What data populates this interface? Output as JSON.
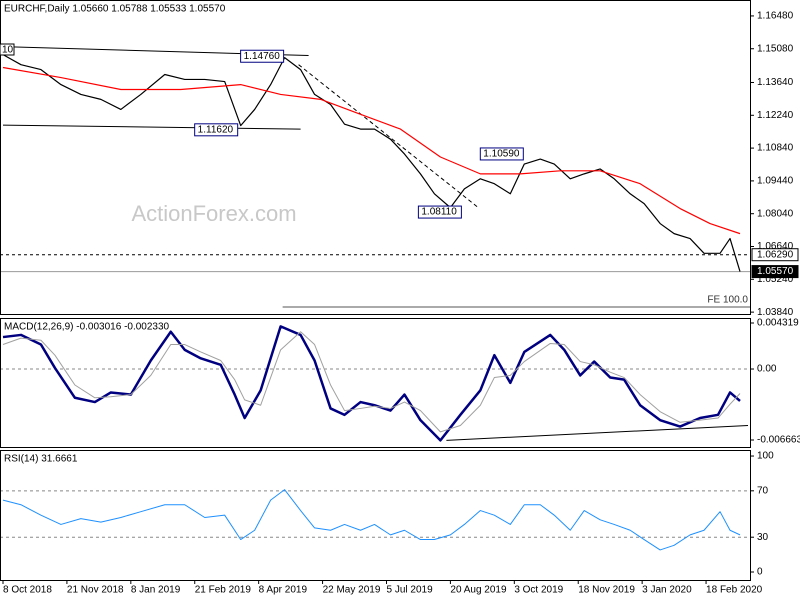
{
  "chart_data": [
    {
      "type": "line",
      "title": "EURCHF,Daily 1.05660 1.05788 1.05533 1.05570",
      "watermark": "ActionForex.com",
      "edge_label": "10",
      "x": [
        0,
        9,
        19,
        29,
        39,
        49,
        59,
        69,
        81,
        91,
        101,
        111,
        119,
        126,
        134,
        141,
        149,
        156,
        164,
        171,
        179,
        186,
        194,
        201,
        209,
        216,
        224,
        231,
        239,
        246,
        254,
        261,
        269,
        276,
        284,
        291,
        299,
        306,
        314,
        321,
        329,
        336,
        344,
        351,
        359,
        364,
        369
      ],
      "xlim": [
        -1.5,
        374
      ],
      "ylim": [
        1.0376,
        1.1716
      ],
      "yticks": [
        {
          "value": 1.1648,
          "label": "1.16480"
        },
        {
          "value": 1.1508,
          "label": "1.15080"
        },
        {
          "value": 1.1364,
          "label": "1.13640"
        },
        {
          "value": 1.1224,
          "label": "1.12240"
        },
        {
          "value": 1.1084,
          "label": "1.10840"
        },
        {
          "value": 1.0944,
          "label": "1.09440"
        },
        {
          "value": 1.0804,
          "label": "1.08040"
        },
        {
          "value": 1.0664,
          "label": "1.06640"
        },
        {
          "value": 1.0524,
          "label": "1.05240"
        },
        {
          "value": 1.0384,
          "label": "1.03840"
        }
      ],
      "series": [
        {
          "color": "#000000",
          "width": 1.2,
          "values": [
            1.1483,
            1.144,
            1.1419,
            1.1355,
            1.1313,
            1.1292,
            1.1249,
            1.1313,
            1.1398,
            1.1377,
            1.1377,
            1.1368,
            1.118,
            1.1249,
            1.1355,
            1.147,
            1.1419,
            1.1313,
            1.127,
            1.1186,
            1.1165,
            1.1165,
            1.1122,
            1.1059,
            1.0974,
            1.0889,
            1.083,
            1.091,
            1.0953,
            1.0932,
            1.0889,
            1.1016,
            1.1037,
            1.1016,
            1.0953,
            1.0974,
            1.0995,
            1.0953,
            1.0889,
            1.0847,
            1.0762,
            1.0719,
            1.0698,
            1.0635,
            1.0635,
            1.0698,
            1.0557
          ]
        },
        {
          "color": "#ff0000",
          "width": 1.2,
          "x": [
            0,
            29,
            59,
            89,
            119,
            139,
            159,
            179,
            199,
            219,
            239,
            259,
            279,
            299,
            319,
            339,
            354,
            369
          ],
          "values": [
            1.1428,
            1.1385,
            1.1334,
            1.1334,
            1.1355,
            1.1313,
            1.1292,
            1.1228,
            1.1165,
            1.1046,
            1.0974,
            1.0974,
            1.0987,
            1.0987,
            1.0932,
            1.0826,
            1.0762,
            1.0719
          ]
        }
      ],
      "trendlines": [
        {
          "x": [
            0,
            153
          ],
          "values": [
            1.1517,
            1.1479
          ],
          "dash": false
        },
        {
          "x": [
            0,
            149
          ],
          "values": [
            1.1182,
            1.1165
          ],
          "dash": false
        },
        {
          "x": [
            148,
            238
          ],
          "values": [
            1.144,
            1.083
          ],
          "dash": true
        }
      ],
      "annotations": [
        {
          "x": 141,
          "value": 1.1476,
          "label": "1.14760"
        },
        {
          "x": 118,
          "value": 1.1162,
          "label": "1.11620"
        },
        {
          "x": 261,
          "value": 1.1059,
          "label": "1.10590"
        },
        {
          "x": 230,
          "value": 1.0811,
          "label": "1.08110"
        }
      ],
      "levels": [
        {
          "value": 1.0629,
          "label": "1.06290",
          "line_color": "#000000",
          "dash": true,
          "label_fill": "#ffffff"
        },
        {
          "value": 1.0557,
          "label": "1.05570",
          "line_color": "#999999",
          "dash": false,
          "label_fill": "#000000"
        }
      ],
      "fe_line": {
        "x_start": 140,
        "value": 1.0406,
        "label": "FE 100.0"
      }
    },
    {
      "type": "line",
      "title": "MACD(12,26,9) -0.003016 -0.002330",
      "x": [
        0,
        9,
        19,
        26,
        36,
        46,
        54,
        64,
        74,
        84,
        91,
        99,
        109,
        116,
        121,
        129,
        139,
        149,
        156,
        164,
        171,
        179,
        186,
        194,
        201,
        209,
        219,
        229,
        239,
        246,
        254,
        261,
        274,
        281,
        289,
        296,
        304,
        311,
        319,
        329,
        339,
        349,
        358,
        364,
        369
      ],
      "xlim": [
        -1.5,
        374
      ],
      "ylim": [
        -0.00732,
        0.004789
      ],
      "yticks": [
        0.004319,
        {
          "value": 0,
          "label": "0.00"
        },
        -0.006663
      ],
      "dashed_levels": [
        0
      ],
      "series": [
        {
          "color": "#000080",
          "width": 2.5,
          "values": [
            0.003,
            0.0032,
            0.0023,
            0.0001,
            -0.0027,
            -0.0031,
            -0.0022,
            -0.0024,
            0.0008,
            0.0035,
            0.0018,
            0.001,
            0.0004,
            -0.0024,
            -0.0046,
            -0.002,
            0.004,
            0.0032,
            0.0008,
            -0.0037,
            -0.0043,
            -0.0031,
            -0.0034,
            -0.0039,
            -0.0024,
            -0.0048,
            -0.0067,
            -0.0043,
            -0.002,
            0.0013,
            -0.0013,
            0.0016,
            0.0032,
            0.0018,
            -0.0006,
            0.0007,
            -0.0008,
            -0.001,
            -0.0034,
            -0.0048,
            -0.0054,
            -0.0046,
            -0.0043,
            -0.0022,
            -0.003
          ]
        },
        {
          "color": "#a0a0a0",
          "width": 1,
          "values": [
            0.0023,
            0.0029,
            0.0027,
            0.0013,
            -0.0015,
            -0.0027,
            -0.0026,
            -0.0024,
            -0.0006,
            0.0023,
            0.0023,
            0.0016,
            0.0008,
            -0.001,
            -0.0029,
            -0.0034,
            0.0018,
            0.0035,
            0.0023,
            -0.0015,
            -0.0039,
            -0.0037,
            -0.0035,
            -0.0037,
            -0.0031,
            -0.0039,
            -0.0059,
            -0.0053,
            -0.0034,
            -0.0008,
            -0.0006,
            0.0007,
            0.0024,
            0.0023,
            0.0007,
            0.0004,
            -0.0003,
            -0.0008,
            -0.0024,
            -0.004,
            -0.005,
            -0.0048,
            -0.0046,
            -0.0033,
            -0.0023
          ]
        }
      ],
      "trendlines": [
        {
          "x": [
            222,
            373
          ],
          "values": [
            -0.0067,
            -0.0053
          ],
          "dash": false
        }
      ]
    },
    {
      "type": "line",
      "title": "RSI(14) 31.6661",
      "x": [
        0,
        9,
        19,
        29,
        39,
        49,
        59,
        69,
        81,
        91,
        101,
        111,
        119,
        126,
        134,
        141,
        149,
        156,
        164,
        171,
        179,
        186,
        194,
        201,
        209,
        216,
        224,
        231,
        239,
        246,
        254,
        261,
        269,
        276,
        284,
        291,
        299,
        306,
        314,
        321,
        329,
        336,
        344,
        351,
        359,
        364,
        369
      ],
      "xlim": [
        -1.5,
        374
      ],
      "ylim": [
        -6.9,
        105.2
      ],
      "yticks": [
        100,
        70,
        30,
        0
      ],
      "dashed_levels": [
        70,
        30
      ],
      "xticks": [
        {
          "value": 0,
          "label": "8 Oct 2018"
        },
        {
          "value": 32,
          "label": "21 Nov 2018"
        },
        {
          "value": 64,
          "label": "8 Jan 2019"
        },
        {
          "value": 96,
          "label": "21 Feb 2019"
        },
        {
          "value": 128,
          "label": "8 Apr 2019"
        },
        {
          "value": 160,
          "label": "22 May 2019"
        },
        {
          "value": 192,
          "label": "5 Jul 2019"
        },
        {
          "value": 224,
          "label": "20 Aug 2019"
        },
        {
          "value": 256,
          "label": "3 Oct 2019"
        },
        {
          "value": 288,
          "label": "18 Nov 2019"
        },
        {
          "value": 320,
          "label": "3 Jan 2020"
        },
        {
          "value": 352,
          "label": "18 Feb 2020"
        }
      ],
      "series": [
        {
          "color": "#1e90ff",
          "width": 1,
          "values": [
            62,
            58,
            49,
            41,
            46,
            43,
            47,
            52,
            58,
            58,
            47,
            49,
            28,
            36,
            62,
            71,
            53,
            38,
            36,
            41,
            36,
            41,
            32,
            36,
            28,
            28,
            32,
            41,
            53,
            49,
            41,
            58,
            58,
            49,
            36,
            53,
            45,
            41,
            36,
            28,
            19,
            23,
            32,
            36,
            52,
            36,
            32
          ]
        }
      ]
    }
  ]
}
